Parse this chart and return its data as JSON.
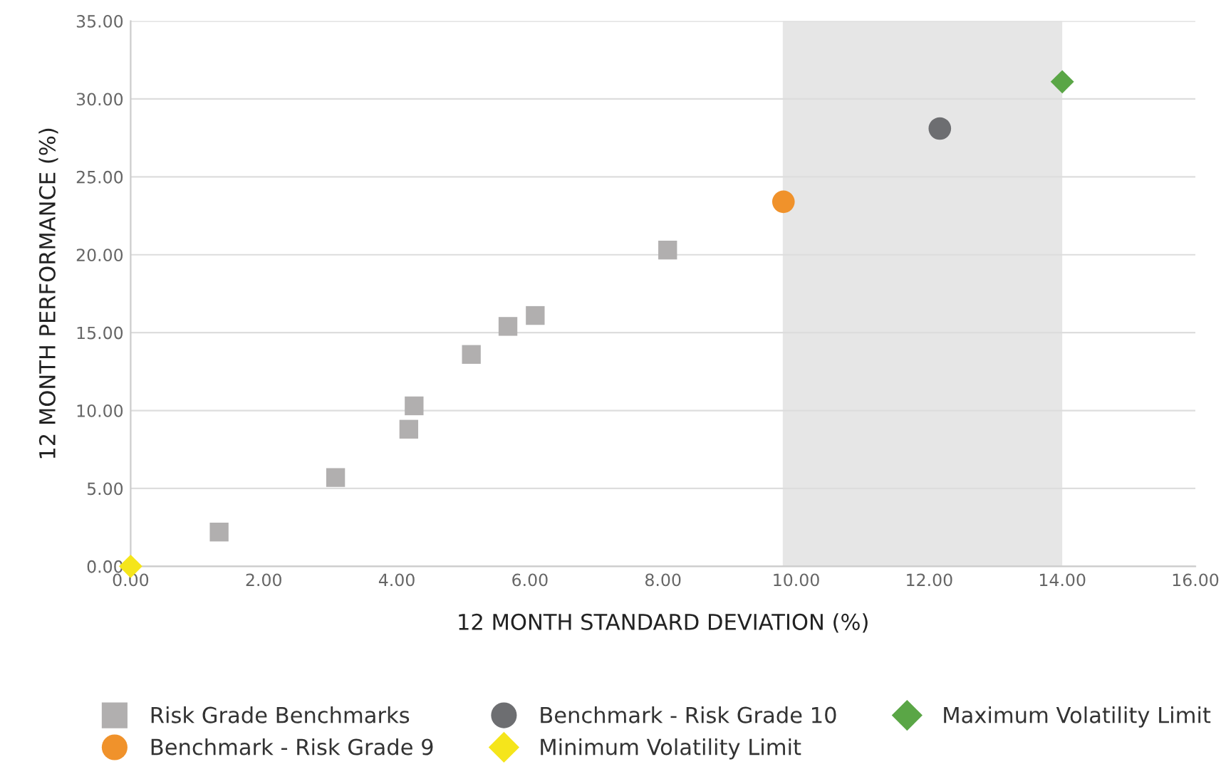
{
  "chart_data": {
    "type": "scatter",
    "xlabel": "12 MONTH STANDARD DEVIATION (%)",
    "ylabel": "12 MONTH PERFORMANCE (%)",
    "series": [
      {
        "name": "Risk Grade Benchmarks",
        "color": "#b1afaf",
        "marker": "square",
        "x": [
          1.33,
          3.08,
          4.18,
          4.26,
          5.12,
          5.67,
          6.08,
          8.07
        ],
        "values": [
          2.2,
          5.7,
          8.8,
          10.3,
          13.6,
          15.4,
          16.1,
          20.3
        ]
      },
      {
        "name": "Benchmark - Risk Grade 9",
        "color": "#f0922b",
        "marker": "circle",
        "x": [
          9.81
        ],
        "values": [
          23.4
        ]
      },
      {
        "name": "Benchmark - Risk Grade 10",
        "color": "#6d6e71",
        "marker": "circle",
        "x": [
          12.16
        ],
        "values": [
          28.1
        ]
      },
      {
        "name": "Minimum Volatility Limit",
        "color": "#f5e51b",
        "marker": "diamond",
        "x": [
          0.0
        ],
        "values": [
          0.0
        ]
      },
      {
        "name": "Maximum Volatility Limit",
        "color": "#5aa646",
        "marker": "diamond",
        "x": [
          14.0
        ],
        "values": [
          31.1
        ]
      }
    ],
    "bands": [
      {
        "axis": "x",
        "from": 9.8,
        "to": 14.0,
        "color": "#e6e6e6"
      }
    ],
    "xlim": [
      0,
      16
    ],
    "ylim": [
      0,
      35
    ],
    "xticks": [
      {
        "value": 0,
        "label": "0.00"
      },
      {
        "value": 2,
        "label": "2.00"
      },
      {
        "value": 4,
        "label": "4.00"
      },
      {
        "value": 6,
        "label": "6.00"
      },
      {
        "value": 8,
        "label": "8.00"
      },
      {
        "value": 10,
        "label": "10.00"
      },
      {
        "value": 12,
        "label": "12.00"
      },
      {
        "value": 14,
        "label": "14.00"
      },
      {
        "value": 16,
        "label": "16.00"
      }
    ],
    "yticks": [
      {
        "value": 0,
        "label": "0.00"
      },
      {
        "value": 5,
        "label": "5.00"
      },
      {
        "value": 10,
        "label": "10.00"
      },
      {
        "value": 15,
        "label": "15.00"
      },
      {
        "value": 20,
        "label": "20.00"
      },
      {
        "value": 25,
        "label": "25.00"
      },
      {
        "value": 30,
        "label": "30.00"
      },
      {
        "value": 35,
        "label": "35.00"
      }
    ],
    "grid": "y",
    "legend": "bottom"
  }
}
